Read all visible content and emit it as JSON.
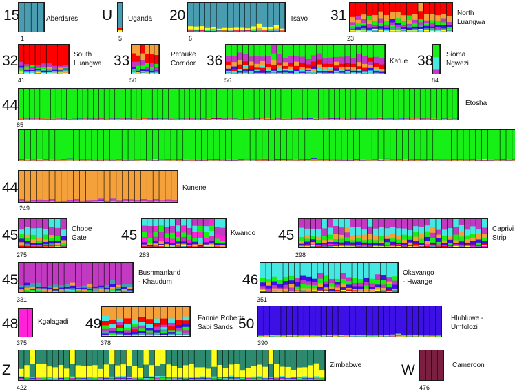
{
  "chart_data": {
    "type": "bar",
    "title": "",
    "xlabel": "",
    "ylabel": "",
    "ylim": [
      0,
      1
    ],
    "cluster_colors": [
      "#17f017",
      "#f4a13c",
      "#4a9db1",
      "#c13ac1",
      "#ff0000",
      "#3d10e6",
      "#ffff1e",
      "#45e8e2",
      "#ff22d8",
      "#2e8a6e",
      "#7a1f40"
    ],
    "populations": [
      {
        "k": "15",
        "name": "Aberdares",
        "start": "1",
        "n": 4,
        "profile": [
          0,
          0,
          1,
          0,
          0,
          0,
          0,
          0,
          0,
          0,
          0
        ]
      },
      {
        "k": "U",
        "name": "Uganda",
        "start": "5",
        "n": 1,
        "profile": [
          0,
          0,
          0.9,
          0,
          0.05,
          0,
          0.05,
          0,
          0,
          0,
          0
        ]
      },
      {
        "k": "20",
        "name": "Tsavo",
        "start": "6",
        "n": 17,
        "profile": [
          0.01,
          0.03,
          0.84,
          0.01,
          0.01,
          0.01,
          0.08,
          0.01,
          0,
          0,
          0
        ]
      },
      {
        "k": "31",
        "name": "North\nLuangwa",
        "start": "23",
        "n": 18,
        "profile": [
          0.13,
          0.18,
          0.05,
          0.12,
          0.39,
          0.07,
          0.03,
          0.03,
          0,
          0,
          0
        ]
      },
      {
        "k": "32",
        "name": "South\nLuangwa",
        "start": "41",
        "n": 9,
        "profile": [
          0.07,
          0.05,
          0.04,
          0.1,
          0.65,
          0.04,
          0.02,
          0.03,
          0,
          0,
          0
        ]
      },
      {
        "k": "33",
        "name": "Petauke\nCorridor",
        "start": "50",
        "n": 6,
        "profile": [
          0.1,
          0.3,
          0.05,
          0.15,
          0.3,
          0.05,
          0.02,
          0.03,
          0,
          0,
          0
        ]
      },
      {
        "k": "36",
        "name": "Kafue",
        "start": "56",
        "n": 28,
        "profile": [
          0.38,
          0.12,
          0.03,
          0.22,
          0.12,
          0.06,
          0.01,
          0.06,
          0,
          0,
          0
        ]
      },
      {
        "k": "38",
        "name": "Sioma\nNgwezi",
        "start": "84",
        "n": 1,
        "profile": [
          0.35,
          0,
          0,
          0.2,
          0,
          0,
          0,
          0.45,
          0,
          0,
          0
        ]
      },
      {
        "k": "44",
        "name": "Etosha",
        "start": "85",
        "n": 164,
        "profile": [
          0.96,
          0.01,
          0,
          0.005,
          0.005,
          0.01,
          0.005,
          0.005,
          0,
          0,
          0
        ]
      },
      {
        "k": "44",
        "name": "Kunene",
        "start": "249",
        "n": 26,
        "profile": [
          0,
          0.93,
          0.01,
          0.04,
          0,
          0.01,
          0.005,
          0.005,
          0,
          0,
          0
        ]
      },
      {
        "k": "45",
        "name": "Chobe\nGate",
        "start": "275",
        "n": 8,
        "profile": [
          0.12,
          0.1,
          0.05,
          0.33,
          0.02,
          0.1,
          0.02,
          0.26,
          0,
          0,
          0
        ]
      },
      {
        "k": "45",
        "name": "Kwando",
        "start": "283",
        "n": 15,
        "profile": [
          0.18,
          0.06,
          0.02,
          0.22,
          0.02,
          0.07,
          0.02,
          0.26,
          0.15,
          0,
          0
        ]
      },
      {
        "k": "45",
        "name": "Caprivi\nStrip",
        "start": "298",
        "n": 33,
        "profile": [
          0.13,
          0.14,
          0.02,
          0.28,
          0.03,
          0.08,
          0.02,
          0.27,
          0.03,
          0,
          0
        ]
      },
      {
        "k": "45",
        "name": "Bushmanland\n- Khaudum",
        "start": "331",
        "n": 20,
        "profile": [
          0.02,
          0.06,
          0.08,
          0.74,
          0.01,
          0.06,
          0.01,
          0.02,
          0,
          0,
          0
        ]
      },
      {
        "k": "46",
        "name": "Okavango\n- Hwange",
        "start": "351",
        "n": 24,
        "profile": [
          0.14,
          0.08,
          0.02,
          0.12,
          0.02,
          0.12,
          0.02,
          0.48,
          0,
          0,
          0
        ]
      },
      {
        "k": "48",
        "name": "Kgalagadi",
        "start": "375",
        "n": 3,
        "profile": [
          0,
          0,
          0,
          0,
          0,
          0,
          0,
          0,
          1,
          0,
          0
        ]
      },
      {
        "k": "49",
        "name": "Fannie Roberts\nSabi Sands",
        "start": "378",
        "n": 12,
        "profile": [
          0.08,
          0.38,
          0.05,
          0.1,
          0.16,
          0.08,
          0.03,
          0.12,
          0,
          0,
          0
        ]
      },
      {
        "k": "50",
        "name": "Hluhluwe -\nUmfolozi",
        "start": "390",
        "n": 32,
        "profile": [
          0.01,
          0.01,
          0,
          0.01,
          0,
          0.95,
          0.01,
          0.01,
          0,
          0,
          0
        ]
      },
      {
        "k": "Z",
        "name": "Zimbabwe",
        "start": "422",
        "n": 54,
        "profile": [
          0.02,
          0.01,
          0.01,
          0.02,
          0,
          0.02,
          0.38,
          0.03,
          0,
          0.51,
          0
        ]
      },
      {
        "k": "W",
        "name": "Cameroon",
        "start": "476",
        "n": 4,
        "profile": [
          0,
          0,
          0,
          0,
          0,
          0,
          0,
          0,
          0,
          0,
          1
        ]
      }
    ]
  }
}
